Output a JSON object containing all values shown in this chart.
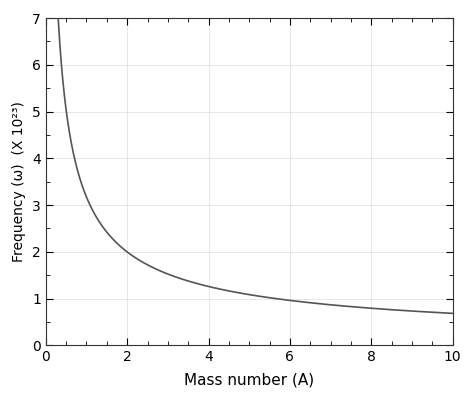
{
  "title": "",
  "xlabel": "Mass number (A)",
  "ylabel": "Frequency (ω)  (X 10²³)",
  "xlim": [
    0,
    10
  ],
  "ylim": [
    0,
    7
  ],
  "xticks": [
    0,
    2,
    4,
    6,
    8,
    10
  ],
  "yticks": [
    0,
    1,
    2,
    3,
    4,
    5,
    6,
    7
  ],
  "x_start": 0.08,
  "x_end": 10.0,
  "power": -0.6667,
  "scale": 3.17,
  "line_color": "#555555",
  "line_width": 1.2,
  "background_color": "#ffffff",
  "grid_color": "#bbbbbb",
  "grid_style": "-",
  "grid_alpha": 0.5,
  "grid_linewidth": 0.5
}
